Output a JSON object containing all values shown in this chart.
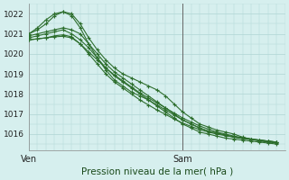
{
  "xlabel": "Pression niveau de la mer( hPa )",
  "xtick_labels": [
    "Ven",
    "Sam"
  ],
  "xtick_positions": [
    0,
    18
  ],
  "xlim": [
    0,
    30
  ],
  "ylim": [
    1015.2,
    1022.5
  ],
  "yticks": [
    1016,
    1017,
    1018,
    1019,
    1020,
    1021,
    1022
  ],
  "bg_color": "#d6efee",
  "grid_color": "#b5d9d8",
  "line_color": "#2d6e2d",
  "vline_x": 18,
  "series": [
    {
      "x": [
        0,
        1,
        2,
        3,
        4,
        5,
        6,
        7,
        8,
        9,
        10,
        11,
        12,
        13,
        14,
        15,
        16,
        17,
        18,
        19,
        20,
        21,
        22,
        23,
        24,
        25,
        26,
        27,
        28,
        29
      ],
      "y": [
        1021.0,
        1021.3,
        1021.7,
        1022.0,
        1022.1,
        1022.0,
        1021.5,
        1020.8,
        1020.2,
        1019.7,
        1019.3,
        1019.0,
        1018.8,
        1018.6,
        1018.4,
        1018.2,
        1017.9,
        1017.5,
        1017.1,
        1016.8,
        1016.5,
        1016.35,
        1016.2,
        1016.1,
        1016.0,
        1015.85,
        1015.75,
        1015.65,
        1015.6,
        1015.55
      ]
    },
    {
      "x": [
        0,
        1,
        2,
        3,
        4,
        5,
        6,
        7,
        8,
        9,
        10,
        11,
        12,
        13,
        14,
        15,
        16,
        17,
        18,
        19,
        20,
        21,
        22,
        23,
        24,
        25,
        26,
        27,
        28,
        29
      ],
      "y": [
        1021.0,
        1021.2,
        1021.5,
        1021.9,
        1022.1,
        1021.9,
        1021.3,
        1020.5,
        1019.8,
        1019.2,
        1018.7,
        1018.4,
        1018.1,
        1017.9,
        1017.7,
        1017.4,
        1017.1,
        1016.8,
        1016.5,
        1016.3,
        1016.1,
        1016.0,
        1015.9,
        1015.8,
        1015.75,
        1015.7,
        1015.65,
        1015.6,
        1015.55,
        1015.5
      ]
    },
    {
      "x": [
        0,
        1,
        2,
        3,
        4,
        5,
        6,
        7,
        8,
        9,
        10,
        11,
        12,
        13,
        14,
        15,
        16,
        17,
        18,
        19,
        20,
        21,
        22,
        23,
        24,
        25,
        26,
        27,
        28,
        29
      ],
      "y": [
        1020.9,
        1021.0,
        1021.1,
        1021.2,
        1021.3,
        1021.2,
        1021.0,
        1020.5,
        1020.0,
        1019.5,
        1019.1,
        1018.8,
        1018.5,
        1018.2,
        1017.9,
        1017.6,
        1017.3,
        1017.0,
        1016.7,
        1016.5,
        1016.3,
        1016.15,
        1016.05,
        1015.95,
        1015.85,
        1015.8,
        1015.75,
        1015.7,
        1015.65,
        1015.6
      ]
    },
    {
      "x": [
        0,
        1,
        2,
        3,
        4,
        5,
        6,
        7,
        8,
        9,
        10,
        11,
        12,
        13,
        14,
        15,
        16,
        17,
        18,
        19,
        20,
        21,
        22,
        23,
        24,
        25,
        26,
        27,
        28,
        29
      ],
      "y": [
        1020.8,
        1020.9,
        1021.0,
        1021.1,
        1021.2,
        1021.0,
        1020.7,
        1020.3,
        1019.8,
        1019.3,
        1018.9,
        1018.6,
        1018.3,
        1018.0,
        1017.7,
        1017.45,
        1017.2,
        1016.95,
        1016.7,
        1016.5,
        1016.3,
        1016.15,
        1016.05,
        1015.95,
        1015.85,
        1015.8,
        1015.75,
        1015.7,
        1015.65,
        1015.6
      ]
    },
    {
      "x": [
        0,
        1,
        2,
        3,
        4,
        5,
        6,
        7,
        8,
        9,
        10,
        11,
        12,
        13,
        14,
        15,
        16,
        17,
        18,
        19,
        20,
        21,
        22,
        23,
        24,
        25,
        26,
        27,
        28,
        29
      ],
      "y": [
        1020.7,
        1020.75,
        1020.8,
        1020.9,
        1020.95,
        1020.85,
        1020.5,
        1020.1,
        1019.7,
        1019.3,
        1018.95,
        1018.65,
        1018.35,
        1018.05,
        1017.8,
        1017.55,
        1017.3,
        1017.05,
        1016.8,
        1016.6,
        1016.4,
        1016.25,
        1016.1,
        1016.0,
        1015.9,
        1015.82,
        1015.75,
        1015.7,
        1015.65,
        1015.6
      ]
    },
    {
      "x": [
        0,
        1,
        2,
        3,
        4,
        5,
        6,
        7,
        8,
        9,
        10,
        11,
        12,
        13,
        14,
        15,
        16,
        17,
        18,
        19,
        20,
        21,
        22,
        23,
        24,
        25,
        26,
        27,
        28,
        29
      ],
      "y": [
        1020.7,
        1020.75,
        1020.8,
        1020.85,
        1020.88,
        1020.8,
        1020.5,
        1020.0,
        1019.5,
        1019.0,
        1018.6,
        1018.3,
        1018.0,
        1017.7,
        1017.45,
        1017.2,
        1016.98,
        1016.75,
        1016.55,
        1016.38,
        1016.22,
        1016.1,
        1016.0,
        1015.92,
        1015.85,
        1015.78,
        1015.72,
        1015.68,
        1015.63,
        1015.58
      ]
    }
  ]
}
